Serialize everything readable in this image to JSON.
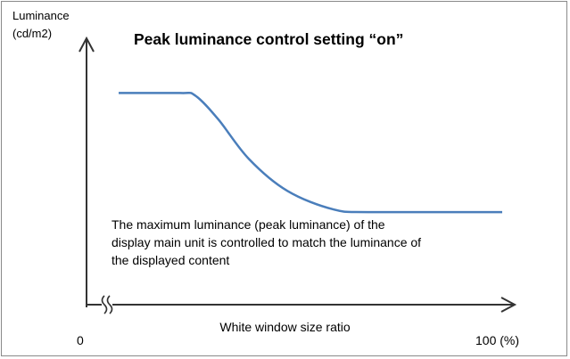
{
  "chart_data": {
    "type": "line",
    "title": "Peak luminance control setting “on”",
    "ylabel": [
      "Luminance",
      "(cd/m2)"
    ],
    "xlabel": "White window size ratio",
    "x_tick_labels": {
      "min": "0",
      "max": "100 (%)"
    },
    "annotation": [
      "The maximum luminance (peak luminance) of the",
      "display main unit is controlled to match the luminance of",
      "the displayed content"
    ],
    "xlim": [
      0,
      100
    ],
    "ylim": [
      0,
      100
    ],
    "x_axis_break": true,
    "grid": false,
    "series": [
      {
        "color": "#4a7ebb",
        "x": [
          0,
          16,
          20,
          26,
          34,
          44,
          56,
          66,
          100
        ],
        "y": [
          80,
          80,
          79,
          70,
          55,
          43,
          36,
          35,
          35
        ]
      }
    ]
  }
}
